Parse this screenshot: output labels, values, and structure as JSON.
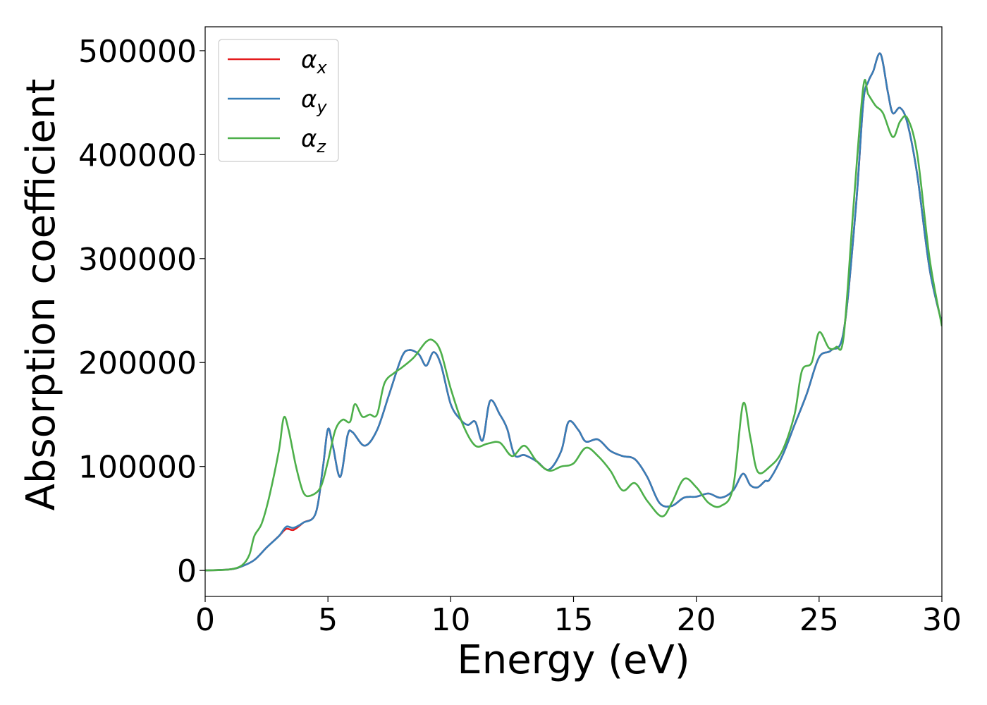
{
  "chart_data": {
    "type": "line",
    "xlabel": "Energy (eV)",
    "ylabel": "Absorption coefficient",
    "xlim": [
      0,
      30
    ],
    "ylim": [
      -25000,
      523000
    ],
    "xticks": [
      0,
      5,
      10,
      15,
      20,
      25,
      30
    ],
    "xtick_labels": [
      "0",
      "5",
      "10",
      "15",
      "20",
      "25",
      "30"
    ],
    "yticks": [
      0,
      100000,
      200000,
      300000,
      400000,
      500000
    ],
    "ytick_labels": [
      "0",
      "100000",
      "200000",
      "300000",
      "400000",
      "500000"
    ],
    "grid": false,
    "legend": {
      "position": "top-left"
    },
    "series": [
      {
        "name": "α",
        "subscript": "x",
        "color": "#e41a1c",
        "x": [
          0,
          1,
          1.5,
          2,
          2.5,
          3,
          3.3,
          3.6,
          4,
          4.5,
          4.8,
          5,
          5.2,
          5.5,
          5.8,
          6,
          6.5,
          7,
          7.5,
          8,
          8.3,
          8.7,
          9,
          9.3,
          9.6,
          10,
          10.4,
          10.7,
          11,
          11.3,
          11.6,
          12,
          12.3,
          12.6,
          13,
          13.5,
          14,
          14.5,
          14.8,
          15.2,
          15.5,
          16,
          16.5,
          17,
          17.5,
          18,
          18.5,
          19,
          19.5,
          20,
          20.5,
          21,
          21.5,
          21.9,
          22.2,
          22.5,
          22.8,
          23,
          23.5,
          24,
          24.5,
          25,
          25.5,
          26,
          26.5,
          26.8,
          27,
          27.2,
          27.5,
          27.8,
          28,
          28.3,
          28.6,
          29,
          29.5,
          30
        ],
        "y": [
          0,
          1000,
          4000,
          10000,
          22000,
          33000,
          40000,
          39000,
          46000,
          55000,
          100000,
          136000,
          120000,
          90000,
          130000,
          133000,
          120000,
          135000,
          170000,
          205000,
          212000,
          208000,
          197000,
          210000,
          198000,
          160000,
          145000,
          140000,
          143000,
          125000,
          163000,
          150000,
          136000,
          111000,
          111000,
          105000,
          97000,
          115000,
          143000,
          135000,
          124000,
          126000,
          115000,
          110000,
          107000,
          90000,
          65000,
          62000,
          70000,
          71000,
          74000,
          70000,
          77000,
          93000,
          82000,
          80000,
          86000,
          88000,
          110000,
          140000,
          170000,
          205000,
          212000,
          230000,
          350000,
          450000,
          470000,
          480000,
          497000,
          460000,
          440000,
          445000,
          430000,
          380000,
          290000,
          238000
        ]
      },
      {
        "name": "α",
        "subscript": "y",
        "color": "#377eb8",
        "x": [
          0,
          1,
          1.5,
          2,
          2.5,
          3,
          3.3,
          3.6,
          4,
          4.5,
          4.8,
          5,
          5.2,
          5.5,
          5.8,
          6,
          6.5,
          7,
          7.5,
          8,
          8.3,
          8.7,
          9,
          9.3,
          9.6,
          10,
          10.4,
          10.7,
          11,
          11.3,
          11.6,
          12,
          12.3,
          12.6,
          13,
          13.5,
          14,
          14.5,
          14.8,
          15.2,
          15.5,
          16,
          16.5,
          17,
          17.5,
          18,
          18.5,
          19,
          19.5,
          20,
          20.5,
          21,
          21.5,
          21.9,
          22.2,
          22.5,
          22.8,
          23,
          23.5,
          24,
          24.5,
          25,
          25.5,
          26,
          26.5,
          26.8,
          27,
          27.2,
          27.5,
          27.8,
          28,
          28.3,
          28.6,
          29,
          29.5,
          30
        ],
        "y": [
          0,
          1000,
          4000,
          10000,
          22000,
          33000,
          42000,
          41000,
          46000,
          55000,
          100000,
          136000,
          120000,
          90000,
          130000,
          133000,
          120000,
          135000,
          170000,
          205000,
          212000,
          208000,
          197000,
          210000,
          198000,
          160000,
          145000,
          140000,
          143000,
          125000,
          163000,
          150000,
          136000,
          111000,
          111000,
          105000,
          97000,
          115000,
          143000,
          135000,
          124000,
          126000,
          115000,
          110000,
          107000,
          90000,
          65000,
          62000,
          70000,
          71000,
          74000,
          70000,
          77000,
          93000,
          82000,
          80000,
          86000,
          88000,
          110000,
          140000,
          170000,
          205000,
          212000,
          230000,
          350000,
          450000,
          470000,
          480000,
          497000,
          460000,
          440000,
          445000,
          430000,
          380000,
          290000,
          238000
        ]
      },
      {
        "name": "α",
        "subscript": "z",
        "color": "#4daf4a",
        "x": [
          0,
          1,
          1.5,
          1.8,
          2,
          2.3,
          2.6,
          3,
          3.2,
          3.4,
          3.7,
          4,
          4.3,
          4.7,
          5,
          5.3,
          5.6,
          5.9,
          6.1,
          6.4,
          6.7,
          7,
          7.3,
          7.7,
          8,
          8.5,
          9,
          9.3,
          9.6,
          10,
          10.5,
          11,
          11.5,
          12,
          12.5,
          13,
          13.5,
          14,
          14.5,
          15,
          15.5,
          16,
          16.5,
          17,
          17.5,
          18,
          18.6,
          19,
          19.5,
          20,
          20.5,
          21,
          21.5,
          21.9,
          22.2,
          22.5,
          23,
          23.5,
          24,
          24.3,
          24.7,
          25,
          25.4,
          25.7,
          26,
          26.4,
          26.8,
          27,
          27.3,
          27.6,
          28,
          28.3,
          28.6,
          29,
          29.5,
          30
        ],
        "y": [
          0,
          1000,
          5000,
          15000,
          33000,
          45000,
          70000,
          115000,
          147000,
          135000,
          100000,
          75000,
          72000,
          80000,
          105000,
          135000,
          145000,
          143000,
          160000,
          148000,
          150000,
          150000,
          180000,
          190000,
          195000,
          205000,
          220000,
          221000,
          210000,
          175000,
          140000,
          120000,
          122000,
          123000,
          110000,
          120000,
          105000,
          96000,
          100000,
          103000,
          118000,
          110000,
          96000,
          77000,
          84000,
          67000,
          52000,
          65000,
          88000,
          80000,
          65000,
          62000,
          80000,
          160000,
          128000,
          95000,
          100000,
          115000,
          150000,
          192000,
          200000,
          229000,
          214000,
          215000,
          225000,
          350000,
          465000,
          458000,
          447000,
          440000,
          417000,
          432000,
          435000,
          400000,
          300000,
          235000
        ]
      }
    ]
  }
}
